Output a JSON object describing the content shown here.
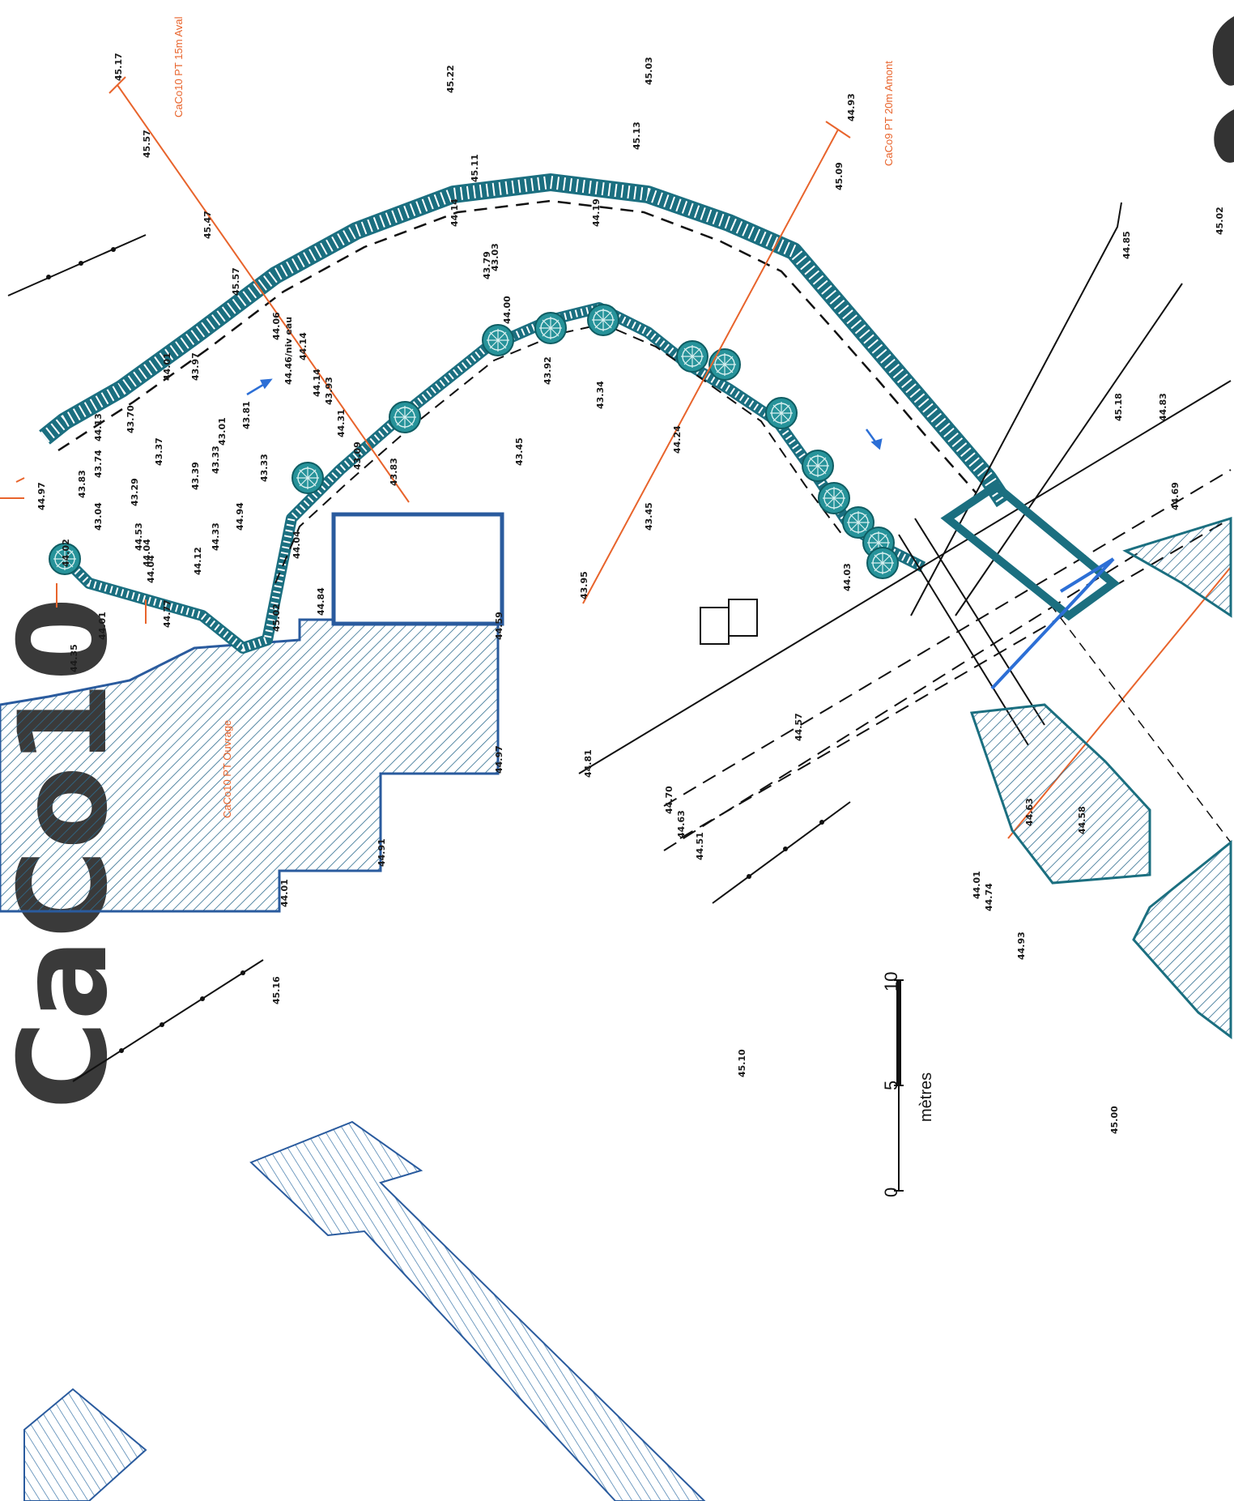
{
  "sheet": {
    "label": "CaCo10"
  },
  "profiles": {
    "caco10_aval": "CaCo10 PT 15m Aval",
    "caco9_amont": "CaCo9 PT 20m Amont",
    "caco10_ouvrage": "CaCo10 PT Ouvrage"
  },
  "scale": {
    "ticks": [
      "0",
      "5",
      "10"
    ],
    "unit": "mètres"
  },
  "elevations": [
    "45.17",
    "45.57",
    "45.47",
    "45.22",
    "45.03",
    "45.13",
    "44.93",
    "45.11",
    "45.09",
    "44.14",
    "44.19",
    "43.79",
    "45.57",
    "44.06",
    "44.46/niv eau",
    "44.14",
    "44.14",
    "43.93",
    "44.31",
    "43.09",
    "43.83",
    "43.03",
    "44.00",
    "43.92",
    "43.34",
    "43.45",
    "43.45",
    "44.24",
    "43.95",
    "44.03",
    "43.97",
    "44.01",
    "43.33",
    "43.81",
    "43.01",
    "43.70",
    "44.13",
    "43.74",
    "43.83",
    "43.04",
    "43.29",
    "43.37",
    "43.39",
    "43.33",
    "44.12",
    "44.04",
    "44.33",
    "44.53",
    "44.04",
    "44.77",
    "44.94",
    "44.04",
    "44.02",
    "44.97",
    "44.35",
    "44.01",
    "45.02",
    "44.84",
    "44.59",
    "44.97",
    "44.91",
    "44.01",
    "44.70",
    "44.63",
    "44.51",
    "44.81",
    "44.57",
    "44.01",
    "44.74",
    "44.93",
    "45.02",
    "45.16",
    "44.85",
    "45.10",
    "45.18",
    "44.83",
    "44.69",
    "45.00",
    "44.63",
    "44.58"
  ],
  "colors": {
    "structure": "#1b6f80",
    "tree": "#1d8a92",
    "profile": "#e8642c",
    "building": "#2a5b9e",
    "hatch": "#3a75a8",
    "water_arrow": "#2c6fd6",
    "line": "#111111"
  },
  "icons": [
    "tree-icon",
    "flow-arrow-icon",
    "scale-bar-icon"
  ]
}
